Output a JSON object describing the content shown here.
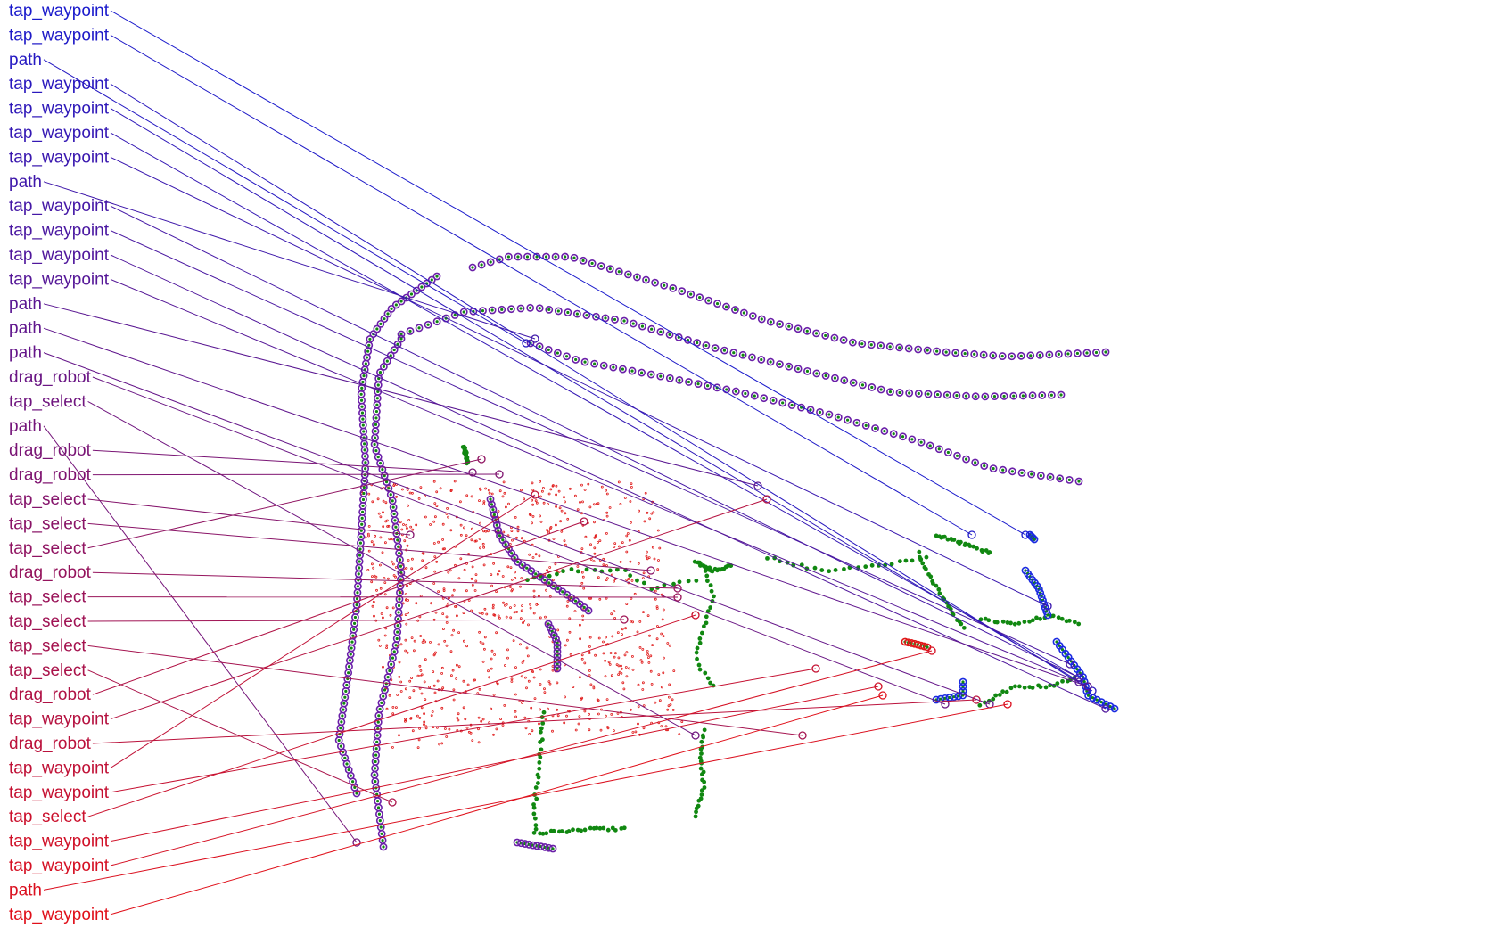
{
  "colors": {
    "label_gradient_start": "#1a1acc",
    "label_gradient_end": "#e0101a",
    "point_green": "#118811",
    "point_red": "#e01818",
    "path_purple": "#6a1fa8",
    "path_blue": "#1a2ae0",
    "ring": "#3a3aa0",
    "background": "#ffffff"
  },
  "labels": [
    "tap_waypoint",
    "tap_waypoint",
    "path",
    "tap_waypoint",
    "tap_waypoint",
    "tap_waypoint",
    "tap_waypoint",
    "path",
    "tap_waypoint",
    "tap_waypoint",
    "tap_waypoint",
    "tap_waypoint",
    "path",
    "path",
    "path",
    "drag_robot",
    "tap_select",
    "path",
    "drag_robot",
    "drag_robot",
    "tap_select",
    "tap_select",
    "tap_select",
    "drag_robot",
    "tap_select",
    "tap_select",
    "tap_select",
    "tap_select",
    "drag_robot",
    "tap_waypoint",
    "drag_robot",
    "tap_waypoint",
    "tap_waypoint",
    "tap_select",
    "tap_waypoint",
    "tap_waypoint",
    "path",
    "tap_waypoint"
  ]
}
